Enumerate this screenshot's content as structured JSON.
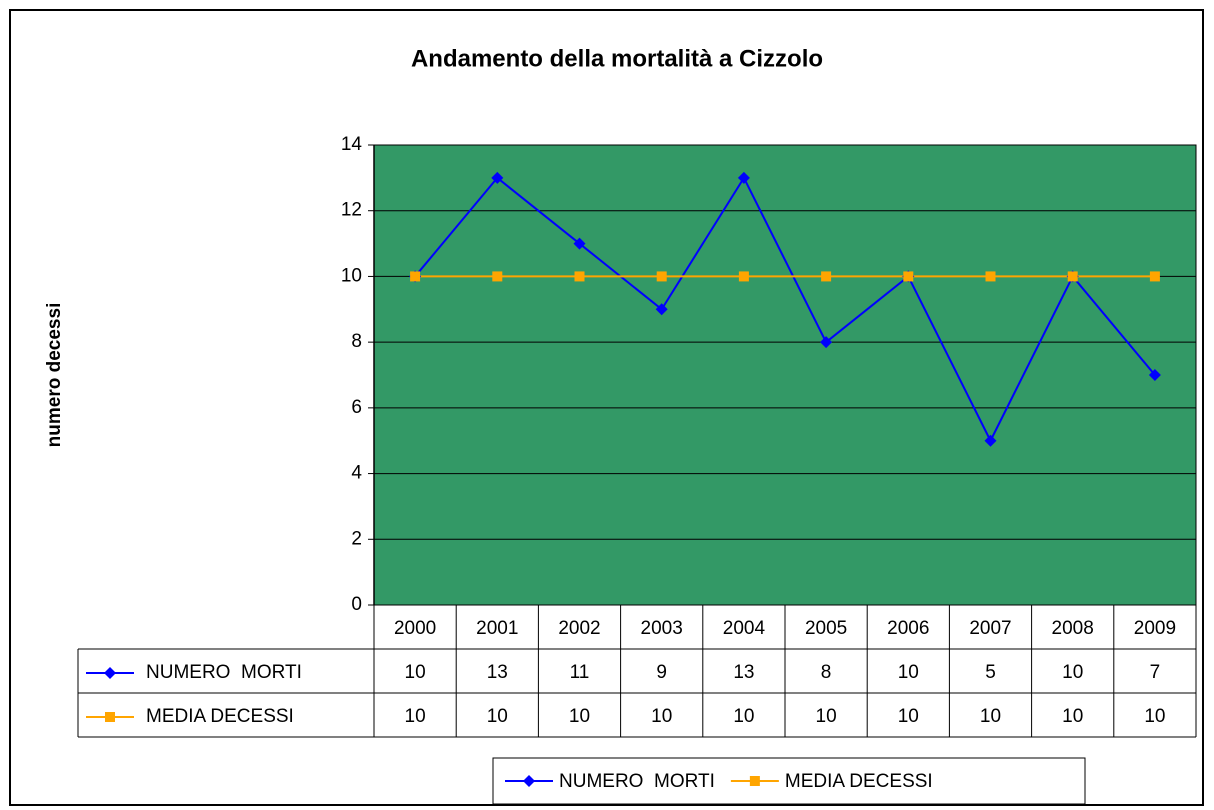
{
  "chart_data": {
    "type": "line",
    "title": "Andamento della mortalità a Cizzolo",
    "y_label": "numero decessi",
    "categories": [
      "2000",
      "2001",
      "2002",
      "2003",
      "2004",
      "2005",
      "2006",
      "2007",
      "2008",
      "2009"
    ],
    "series": [
      {
        "name": "NUMERO  MORTI",
        "color": "#0000ff",
        "marker": "diamond",
        "values": [
          10,
          13,
          11,
          9,
          13,
          8,
          10,
          5,
          10,
          7
        ]
      },
      {
        "name": "MEDIA DECESSI",
        "color": "#ffa500",
        "marker": "square",
        "values": [
          10,
          10,
          10,
          10,
          10,
          10,
          10,
          10,
          10,
          10
        ]
      }
    ],
    "ylim": [
      0,
      14
    ],
    "yticks": [
      0,
      2,
      4,
      6,
      8,
      10,
      12,
      14
    ],
    "grid": true,
    "plot_background": "#339966",
    "data_table": true,
    "legend": "bottom"
  }
}
